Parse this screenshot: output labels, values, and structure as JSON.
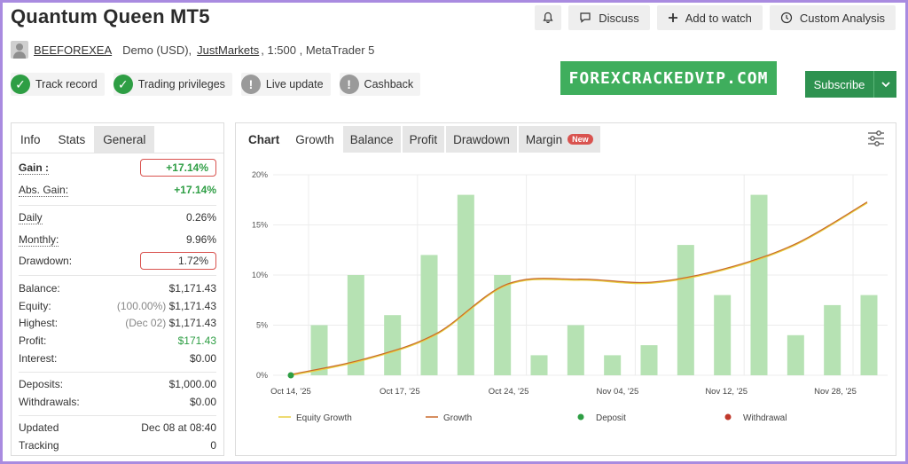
{
  "header": {
    "title": "Quantum Queen MT5",
    "buttons": {
      "discuss": "Discuss",
      "watch": "Add to watch",
      "custom": "Custom Analysis"
    }
  },
  "meta": {
    "author": "BEEFOREXEA",
    "account": "Demo (USD),",
    "broker": "JustMarkets",
    "details": ", 1:500 , MetaTrader 5"
  },
  "badges": [
    {
      "label": "Track record",
      "status": "ok"
    },
    {
      "label": "Trading privileges",
      "status": "ok"
    },
    {
      "label": "Live update",
      "status": "warn"
    },
    {
      "label": "Cashback",
      "status": "warn"
    }
  ],
  "promo": "FOREXCRACKEDVIP.COM",
  "subscribe": "Subscribe",
  "left_tabs": {
    "info": "Info",
    "stats": "Stats",
    "general": "General"
  },
  "stats": {
    "gain": {
      "label": "Gain :",
      "value": "+17.14%"
    },
    "abs_gain": {
      "label": "Abs. Gain:",
      "value": "+17.14%"
    },
    "daily": {
      "label": "Daily",
      "value": "0.26%"
    },
    "monthly": {
      "label": "Monthly:",
      "value": "9.96%"
    },
    "drawdown": {
      "label": "Drawdown:",
      "value": "1.72%"
    },
    "balance": {
      "label": "Balance:",
      "value": "$1,171.43"
    },
    "equity": {
      "label": "Equity:",
      "note": "(100.00%)",
      "value": "$1,171.43"
    },
    "highest": {
      "label": "Highest:",
      "note": "(Dec 02)",
      "value": "$1,171.43"
    },
    "profit": {
      "label": "Profit:",
      "value": "$171.43"
    },
    "interest": {
      "label": "Interest:",
      "value": "$0.00"
    },
    "deposits": {
      "label": "Deposits:",
      "value": "$1,000.00"
    },
    "withdrawals": {
      "label": "Withdrawals:",
      "value": "$0.00"
    },
    "updated": {
      "label": "Updated",
      "value": "Dec 08 at 08:40"
    },
    "tracking": {
      "label": "Tracking",
      "value": "0"
    }
  },
  "chart_tabs": {
    "chart": "Chart",
    "growth": "Growth",
    "balance": "Balance",
    "profit": "Profit",
    "drawdown": "Drawdown",
    "margin": "Margin",
    "new": "New"
  },
  "colors": {
    "bar": "#b6e2b3",
    "growth": "#c8692a",
    "equity": "#e8cf42",
    "deposit": "#2e9e44",
    "withdrawal": "#c0392b"
  },
  "chart_data": {
    "type": "bar",
    "ylim": [
      0,
      20
    ],
    "yticks": [
      "0%",
      "5%",
      "10%",
      "15%",
      "20%"
    ],
    "xticks": [
      "Oct 14, '25",
      "Oct 17, '25",
      "Oct 24, '25",
      "Nov 04, '25",
      "Nov 12, '25",
      "Nov 28, '25"
    ],
    "bars": [
      5,
      10,
      6,
      12,
      18,
      10,
      2,
      5,
      2,
      3,
      13,
      8,
      18,
      4,
      7,
      8
    ],
    "growth_line": [
      0,
      1.5,
      4,
      9,
      9.5,
      9.2,
      10.5,
      13,
      17.2
    ],
    "deposit_point": 0,
    "legend": [
      "Equity Growth",
      "Growth",
      "Deposit",
      "Withdrawal"
    ]
  }
}
